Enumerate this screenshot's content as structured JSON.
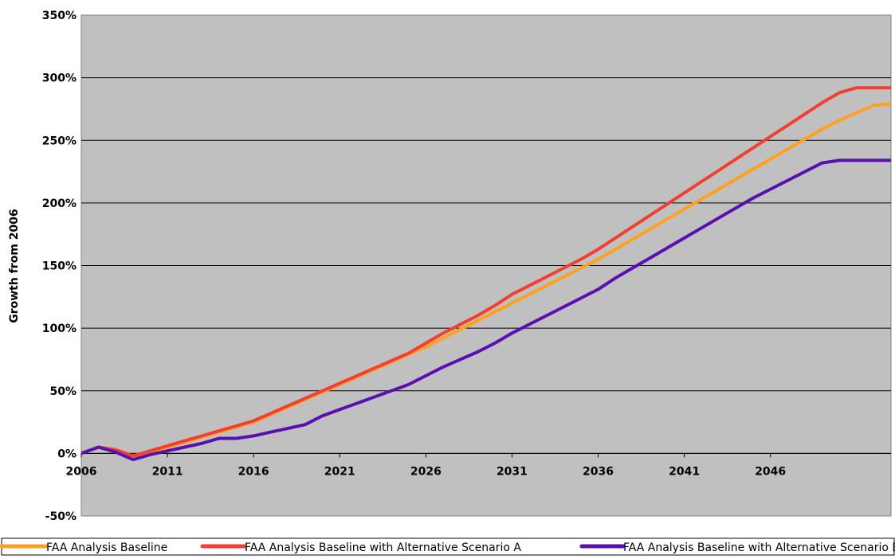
{
  "chart_data": {
    "type": "line",
    "title": "",
    "xlabel": "",
    "ylabel": "Growth from 2006",
    "xlim": [
      2006,
      2053
    ],
    "ylim": [
      -50,
      350
    ],
    "x_ticks": [
      2006,
      2011,
      2016,
      2021,
      2026,
      2031,
      2036,
      2041,
      2046
    ],
    "x_tick_labels": [
      "2006",
      "2011",
      "2016",
      "2021",
      "2026",
      "2031",
      "2036",
      "2041",
      "2046"
    ],
    "y_ticks": [
      -50,
      0,
      50,
      100,
      150,
      200,
      250,
      300,
      350
    ],
    "y_tick_labels": [
      "-50%",
      "0%",
      "50%",
      "100%",
      "150%",
      "200%",
      "250%",
      "300%",
      "350%"
    ],
    "grid": "horizontal",
    "legend_position": "bottom",
    "plot_background": "#c0c0c0",
    "series": [
      {
        "name": "FAA Analysis Baseline",
        "color": "#ffa020",
        "x": [
          2006,
          2007,
          2008,
          2009,
          2010,
          2011,
          2012,
          2013,
          2014,
          2015,
          2016,
          2017,
          2018,
          2019,
          2020,
          2021,
          2022,
          2023,
          2024,
          2025,
          2026,
          2027,
          2028,
          2029,
          2030,
          2031,
          2032,
          2033,
          2034,
          2035,
          2036,
          2037,
          2038,
          2039,
          2040,
          2041,
          2042,
          2043,
          2044,
          2045,
          2046,
          2047,
          2048,
          2049,
          2050,
          2051,
          2052,
          2053
        ],
        "values": [
          0,
          5,
          2,
          -3,
          1,
          5,
          9,
          13,
          17,
          21,
          25,
          31,
          37,
          43,
          49,
          55,
          61,
          67,
          73,
          79,
          85,
          92,
          99,
          106,
          113,
          120,
          127,
          134,
          141,
          148,
          155,
          163,
          171,
          179,
          187,
          195,
          203,
          211,
          219,
          227,
          235,
          243,
          251,
          259,
          266,
          272,
          278,
          279
        ]
      },
      {
        "name": "FAA Analysis Baseline with Alternative Scenario A",
        "color": "#f04030",
        "x": [
          2006,
          2007,
          2008,
          2009,
          2010,
          2011,
          2012,
          2013,
          2014,
          2015,
          2016,
          2017,
          2018,
          2019,
          2020,
          2021,
          2022,
          2023,
          2024,
          2025,
          2026,
          2027,
          2028,
          2029,
          2030,
          2031,
          2032,
          2033,
          2034,
          2035,
          2036,
          2037,
          2038,
          2039,
          2040,
          2041,
          2042,
          2043,
          2044,
          2045,
          2046,
          2047,
          2048,
          2049,
          2050,
          2051,
          2052,
          2053
        ],
        "values": [
          0,
          5,
          3,
          -2,
          2,
          6,
          10,
          14,
          18,
          22,
          26,
          32,
          38,
          44,
          50,
          56,
          62,
          68,
          74,
          80,
          88,
          96,
          103,
          110,
          118,
          127,
          134,
          141,
          148,
          155,
          163,
          172,
          181,
          190,
          199,
          208,
          217,
          226,
          235,
          244,
          253,
          262,
          271,
          280,
          288,
          292,
          292,
          292
        ]
      },
      {
        "name": "FAA Analysis Baseline with Alternative Scenario B",
        "color": "#5a10b0",
        "x": [
          2006,
          2007,
          2008,
          2009,
          2010,
          2011,
          2012,
          2013,
          2014,
          2015,
          2016,
          2017,
          2018,
          2019,
          2020,
          2021,
          2022,
          2023,
          2024,
          2025,
          2026,
          2027,
          2028,
          2029,
          2030,
          2031,
          2032,
          2033,
          2034,
          2035,
          2036,
          2037,
          2038,
          2039,
          2040,
          2041,
          2042,
          2043,
          2044,
          2045,
          2046,
          2047,
          2048,
          2049,
          2050,
          2051,
          2052,
          2053
        ],
        "values": [
          0,
          5,
          1,
          -5,
          -1,
          2,
          5,
          8,
          12,
          12,
          14,
          17,
          20,
          23,
          30,
          35,
          40,
          45,
          50,
          55,
          62,
          69,
          75,
          81,
          88,
          96,
          103,
          110,
          117,
          124,
          131,
          140,
          148,
          156,
          164,
          172,
          180,
          188,
          196,
          204,
          211,
          218,
          225,
          232,
          234,
          234,
          234,
          234
        ]
      }
    ]
  }
}
